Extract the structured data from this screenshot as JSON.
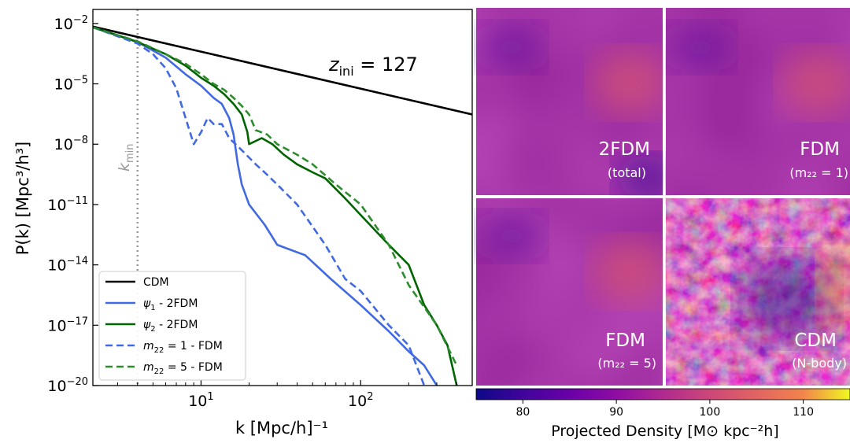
{
  "chart_data": [
    {
      "type": "line",
      "xlabel": "k [Mpc/h]⁻¹",
      "ylabel": "P(k) [Mpc³/h³]",
      "xscale": "log",
      "yscale": "log",
      "xlim": [
        2.1,
        500
      ],
      "ylim": [
        1e-20,
        0.05
      ],
      "x_ticks": [
        {
          "value": 10,
          "base": "10",
          "exp": "1"
        },
        {
          "value": 100,
          "base": "10",
          "exp": "2"
        }
      ],
      "y_ticks": [
        {
          "value": 0.01,
          "base": "10",
          "exp": "−2"
        },
        {
          "value": 1e-05,
          "base": "10",
          "exp": "−5"
        },
        {
          "value": 1e-08,
          "base": "10",
          "exp": "−8"
        },
        {
          "value": 1e-11,
          "base": "10",
          "exp": "−11"
        },
        {
          "value": 1e-14,
          "base": "10",
          "exp": "−14"
        },
        {
          "value": 1e-17,
          "base": "10",
          "exp": "−17"
        },
        {
          "value": 1e-20,
          "base": "10",
          "exp": "−20"
        }
      ],
      "annotation": {
        "main": "z",
        "sub": "ini",
        "rest": " = 127"
      },
      "kmin": {
        "value": 4.0,
        "main": "k",
        "sub": "min",
        "color": "#999999"
      },
      "legend": {
        "position": "lower-left"
      },
      "series": [
        {
          "name": "CDM",
          "color": "#000000",
          "dash": "solid",
          "points": [
            [
              2.1,
              0.007
            ],
            [
              500,
              3e-07
            ]
          ]
        },
        {
          "name": "ψ₁ - 2FDM",
          "name_main": "ψ",
          "name_sub": "1",
          "name_rest": " - 2FDM",
          "color": "#4169e1",
          "dash": "solid",
          "points": [
            [
              2.1,
              0.0065
            ],
            [
              4,
              0.0012
            ],
            [
              6,
              0.0002
            ],
            [
              8,
              3e-05
            ],
            [
              10,
              8e-06
            ],
            [
              12,
              2e-06
            ],
            [
              13.5,
              1e-06
            ],
            [
              15,
              2e-07
            ],
            [
              16,
              3e-08
            ],
            [
              17,
              1e-09
            ],
            [
              18,
              1e-10
            ],
            [
              20,
              1e-11
            ],
            [
              25,
              1e-12
            ],
            [
              30,
              1e-13
            ],
            [
              45,
              3e-14
            ],
            [
              65,
              2e-15
            ],
            [
              100,
              1e-16
            ],
            [
              150,
              5e-18
            ],
            [
              200,
              5e-19
            ],
            [
              250,
              1e-19
            ],
            [
              300,
              1e-20
            ]
          ]
        },
        {
          "name": "ψ₂ - 2FDM",
          "name_main": "ψ",
          "name_sub": "2",
          "name_rest": " - 2FDM",
          "color": "#006400",
          "dash": "solid",
          "points": [
            [
              2.1,
              0.0065
            ],
            [
              4,
              0.0012
            ],
            [
              6,
              0.0003
            ],
            [
              8,
              8e-05
            ],
            [
              10,
              2e-05
            ],
            [
              12,
              8e-06
            ],
            [
              14,
              3e-06
            ],
            [
              16,
              1e-06
            ],
            [
              18,
              3e-07
            ],
            [
              19.5,
              4e-08
            ],
            [
              20,
              1e-08
            ],
            [
              24,
              2e-08
            ],
            [
              28,
              1e-08
            ],
            [
              33,
              3e-09
            ],
            [
              40,
              1e-09
            ],
            [
              50,
              4e-10
            ],
            [
              60,
              2e-10
            ],
            [
              80,
              2e-11
            ],
            [
              100,
              3e-12
            ],
            [
              150,
              1e-13
            ],
            [
              200,
              1e-14
            ],
            [
              250,
              1e-16
            ],
            [
              300,
              1e-17
            ],
            [
              350,
              1e-18
            ],
            [
              400,
              1e-20
            ]
          ]
        },
        {
          "name": "m₂₂ = 1 - FDM",
          "name_main": "m",
          "name_sub": "22",
          "name_rest": " = 1 - FDM",
          "color": "#4169e1",
          "dash": "dashed",
          "points": [
            [
              2.1,
              0.0065
            ],
            [
              4,
              0.001
            ],
            [
              5,
              0.0003
            ],
            [
              6,
              6e-05
            ],
            [
              7,
              6e-06
            ],
            [
              8,
              2e-07
            ],
            [
              9,
              1e-08
            ],
            [
              10,
              4e-08
            ],
            [
              11,
              2e-07
            ],
            [
              12,
              1e-07
            ],
            [
              13.5,
              1e-07
            ],
            [
              15,
              2e-08
            ],
            [
              18,
              5e-09
            ],
            [
              22,
              1e-09
            ],
            [
              25,
              4e-10
            ],
            [
              30,
              1e-10
            ],
            [
              40,
              1e-11
            ],
            [
              60,
              1e-13
            ],
            [
              80,
              2e-15
            ],
            [
              100,
              5e-16
            ],
            [
              150,
              1e-17
            ],
            [
              200,
              1e-18
            ],
            [
              250,
              1e-20
            ]
          ]
        },
        {
          "name": "m₂₂ = 5 - FDM",
          "name_main": "m",
          "name_sub": "22",
          "name_rest": " = 5 - FDM",
          "color": "#2e8b2e",
          "dash": "dashed",
          "points": [
            [
              2.1,
              0.0065
            ],
            [
              4,
              0.0013
            ],
            [
              6,
              0.0003
            ],
            [
              8,
              0.0001
            ],
            [
              10,
              3e-05
            ],
            [
              12,
              1e-05
            ],
            [
              14,
              5e-06
            ],
            [
              16,
              2e-06
            ],
            [
              18,
              8e-07
            ],
            [
              20,
              3e-07
            ],
            [
              22,
              5e-08
            ],
            [
              26,
              3e-08
            ],
            [
              30,
              1e-08
            ],
            [
              40,
              3e-09
            ],
            [
              50,
              1e-09
            ],
            [
              70,
              1e-10
            ],
            [
              100,
              1e-11
            ],
            [
              150,
              1e-13
            ],
            [
              200,
              1e-15
            ],
            [
              300,
              1e-17
            ],
            [
              400,
              1e-19
            ]
          ]
        }
      ]
    },
    {
      "type": "heatmap",
      "colormap": "plasma",
      "colorbar": {
        "label_text": "Projected Density",
        "label_units": "[M⊙ kpc⁻²h]",
        "range": [
          75,
          115
        ],
        "ticks": [
          80,
          90,
          100,
          110
        ],
        "tick_labels": [
          "80",
          "90",
          "100",
          "110"
        ]
      },
      "panels": [
        {
          "title": "2FDM",
          "subtitle": "(total)",
          "smooth": true
        },
        {
          "title": "FDM",
          "subtitle": "(m₂₂ = 1)",
          "smooth": true
        },
        {
          "title": "FDM",
          "subtitle": "(m₂₂ = 5)",
          "smooth": true
        },
        {
          "title": "CDM",
          "subtitle": "(N-body)",
          "smooth": false
        }
      ]
    }
  ]
}
